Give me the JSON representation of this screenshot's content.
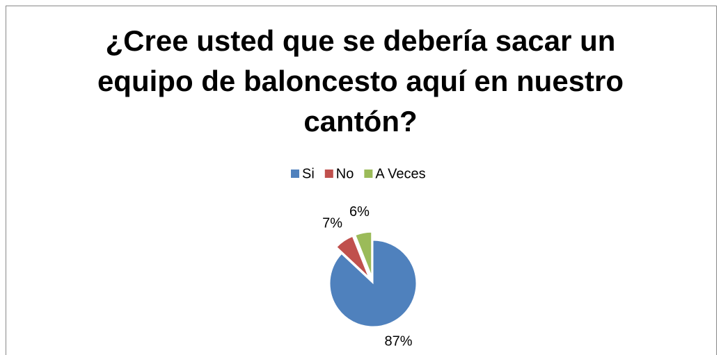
{
  "chart_data": {
    "type": "pie",
    "title": "¿Cree usted que se debería sacar un equipo de baloncesto aquí en nuestro cantón?",
    "categories": [
      "Si",
      "No",
      "A Veces"
    ],
    "values": [
      87,
      7,
      6
    ],
    "value_labels": [
      "87%",
      "7%",
      "6%"
    ],
    "colors": [
      "#4f81bd",
      "#c0504d",
      "#9bbb59"
    ],
    "legend": "top"
  }
}
